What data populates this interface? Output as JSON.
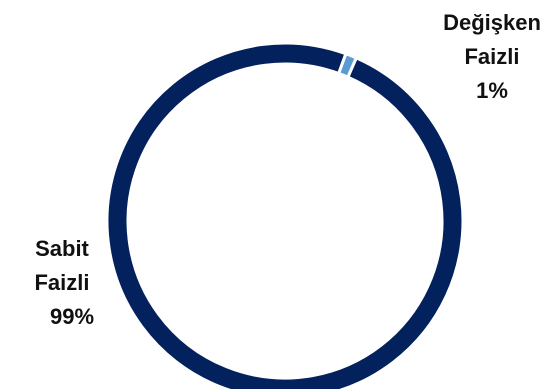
{
  "chart_data": {
    "type": "pie",
    "style": "donut",
    "categories": [
      "Sabit Faizli",
      "Değişken Faizli"
    ],
    "values": [
      99,
      1
    ],
    "colors": [
      "#03215c",
      "#5b9bd5"
    ],
    "labels": [
      {
        "name_line1": "Sabit",
        "name_line2": "Faizli",
        "value_text": "99%"
      },
      {
        "name_line1": "Değişken",
        "name_line2": "Faizli",
        "value_text": "1%"
      }
    ]
  }
}
